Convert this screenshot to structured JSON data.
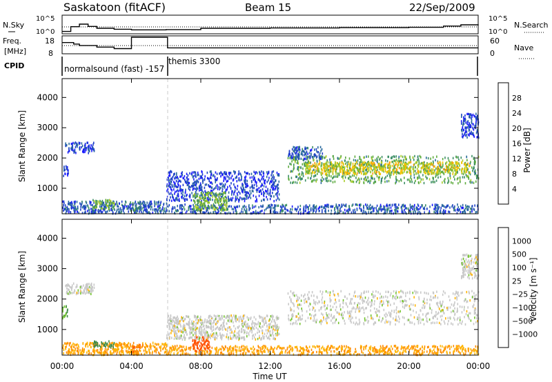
{
  "header": {
    "title": "Saskatoon (fitACF)",
    "beam": "Beam 15",
    "date": "22/Sep/2009"
  },
  "noise_panel": {
    "left_label": "N.Sky",
    "left_ticks": [
      "10^5",
      "10^0"
    ],
    "right_label": "N.Search",
    "right_ticks": [
      "10^5",
      "10^0"
    ]
  },
  "freq_panel": {
    "left_label_1": "Freq.",
    "left_label_2": "[MHz]",
    "left_ticks": [
      "18",
      "8"
    ],
    "right_label": "Nave",
    "right_ticks": [
      "60",
      "0"
    ]
  },
  "cpid_panel": {
    "label": "CPID",
    "entries": [
      {
        "text": "normalsound (fast) -157"
      },
      {
        "text": "themis 3300"
      }
    ]
  },
  "colors": {
    "power_scale": [
      "#1a1aff",
      "#1e40c8",
      "#2a6a9e",
      "#3d8f66",
      "#5cab3c",
      "#a8cc2a",
      "#f2c400",
      "#ff9a00",
      "#ff5a00",
      "#ff1f00"
    ],
    "velocity_scale": [
      "#1e2fa8",
      "#1e4fb4",
      "#2e6e78",
      "#3f8a47",
      "#74c42e",
      "#c8c8c8",
      "#c8c8c8",
      "#ffb400",
      "#ff8c00",
      "#ff5000",
      "#ff1a00"
    ]
  },
  "chart_data": [
    {
      "type": "line",
      "title": "",
      "series": [
        {
          "name": "N.Sky",
          "x": [
            "00:00",
            "00:30",
            "01:00",
            "01:30",
            "02:00",
            "03:00",
            "04:00",
            "05:00",
            "06:00",
            "08:00",
            "12:00",
            "16:00",
            "20:00",
            "22:00",
            "23:00",
            "24:00"
          ],
          "values": [
            0.3,
            1.8,
            2.6,
            1.9,
            1.3,
            1.0,
            0.8,
            0.8,
            0.9,
            1.3,
            1.4,
            1.5,
            1.6,
            2.0,
            2.4,
            2.2
          ]
        }
      ],
      "ylabel": "N.Sky",
      "y2label": "N.Search",
      "ylim": [
        0,
        5
      ]
    },
    {
      "type": "line",
      "series": [
        {
          "name": "Freq.",
          "x": [
            "00:00",
            "00:40",
            "01:00",
            "02:00",
            "03:00",
            "04:00",
            "06:00",
            "06:05",
            "24:00"
          ],
          "values": [
            14.5,
            13.5,
            12.5,
            11.5,
            10.5,
            18,
            18,
            11,
            11
          ]
        },
        {
          "name": "Nave",
          "x": [
            "00:00",
            "06:00",
            "24:00"
          ],
          "values": [
            27,
            27,
            27
          ]
        }
      ],
      "ylabel": "Freq. [MHz]",
      "y2label": "Nave",
      "ylim": [
        8,
        18
      ],
      "y2lim": [
        0,
        60
      ]
    },
    {
      "type": "heatmap",
      "title": "",
      "xlabel": "",
      "ylabel": "Slant Range [km]",
      "ylim": [
        180,
        4600
      ],
      "xlim": [
        "00:00",
        "24:00"
      ],
      "yticks": [
        "4000",
        "3000",
        "2000",
        "1000"
      ],
      "colorbar": {
        "label": "Power [dB]",
        "ticks": [
          "28",
          "24",
          "20",
          "16",
          "12",
          "8",
          "4"
        ],
        "range": [
          0,
          30
        ]
      },
      "regions": [
        {
          "x": [
            "00:00",
            "00:20"
          ],
          "y": [
            1400,
            1800
          ],
          "value": 4
        },
        {
          "x": [
            "00:10",
            "01:50"
          ],
          "y": [
            2200,
            2550
          ],
          "value": 4
        },
        {
          "x": [
            "00:00",
            "06:00"
          ],
          "y": [
            200,
            600
          ],
          "value": 6
        },
        {
          "x": [
            "01:45",
            "03:00"
          ],
          "y": [
            350,
            650
          ],
          "value": 14
        },
        {
          "x": [
            "04:00",
            "04:30"
          ],
          "y": [
            300,
            550
          ],
          "value": 10
        },
        {
          "x": [
            "06:00",
            "24:00"
          ],
          "y": [
            200,
            500
          ],
          "value": 6
        },
        {
          "x": [
            "06:00",
            "12:30"
          ],
          "y": [
            600,
            1600
          ],
          "value": 4
        },
        {
          "x": [
            "07:30",
            "09:30"
          ],
          "y": [
            300,
            900
          ],
          "value": 14
        },
        {
          "x": [
            "13:00",
            "24:00"
          ],
          "y": [
            1200,
            2100
          ],
          "value": 12
        },
        {
          "x": [
            "14:00",
            "23:30"
          ],
          "y": [
            1500,
            1900
          ],
          "value": 18
        },
        {
          "x": [
            "13:00",
            "15:00"
          ],
          "y": [
            2000,
            2400
          ],
          "value": 6
        },
        {
          "x": [
            "23:00",
            "24:00"
          ],
          "y": [
            2700,
            3500
          ],
          "value": 4
        }
      ]
    },
    {
      "type": "heatmap",
      "title": "",
      "xlabel": "Time UT",
      "ylabel": "Slant Range [km]",
      "ylim": [
        180,
        4600
      ],
      "xlim": [
        "00:00",
        "24:00"
      ],
      "x_tick_labels": [
        "00:00",
        "04:00",
        "08:00",
        "12:00",
        "16:00",
        "20:00",
        "00:00"
      ],
      "yticks": [
        "4000",
        "3000",
        "2000",
        "1000"
      ],
      "colorbar": {
        "label": "Velocity [m s⁻¹]",
        "ticks": [
          "1000",
          "500",
          "100",
          "25",
          "−25",
          "−100",
          "−500",
          "−1000"
        ]
      },
      "regions": [
        {
          "x": [
            "00:00",
            "00:20"
          ],
          "y": [
            1400,
            1800
          ],
          "value": 60
        },
        {
          "x": [
            "00:10",
            "01:50"
          ],
          "y": [
            2200,
            2550
          ],
          "value": 0
        },
        {
          "x": [
            "00:00",
            "06:00"
          ],
          "y": [
            200,
            600
          ],
          "value": -60
        },
        {
          "x": [
            "01:45",
            "03:00"
          ],
          "y": [
            450,
            650
          ],
          "value": 100
        },
        {
          "x": [
            "04:00",
            "04:30"
          ],
          "y": [
            300,
            550
          ],
          "value": -300
        },
        {
          "x": [
            "06:00",
            "24:00"
          ],
          "y": [
            200,
            500
          ],
          "value": -60
        },
        {
          "x": [
            "07:30",
            "08:30"
          ],
          "y": [
            300,
            800
          ],
          "value": -400
        },
        {
          "x": [
            "06:00",
            "12:30"
          ],
          "y": [
            700,
            1500
          ],
          "value": 0
        },
        {
          "x": [
            "13:00",
            "24:00"
          ],
          "y": [
            1200,
            2300
          ],
          "value": 0
        },
        {
          "x": [
            "23:00",
            "24:00"
          ],
          "y": [
            2700,
            3500
          ],
          "value": 0
        }
      ]
    }
  ]
}
